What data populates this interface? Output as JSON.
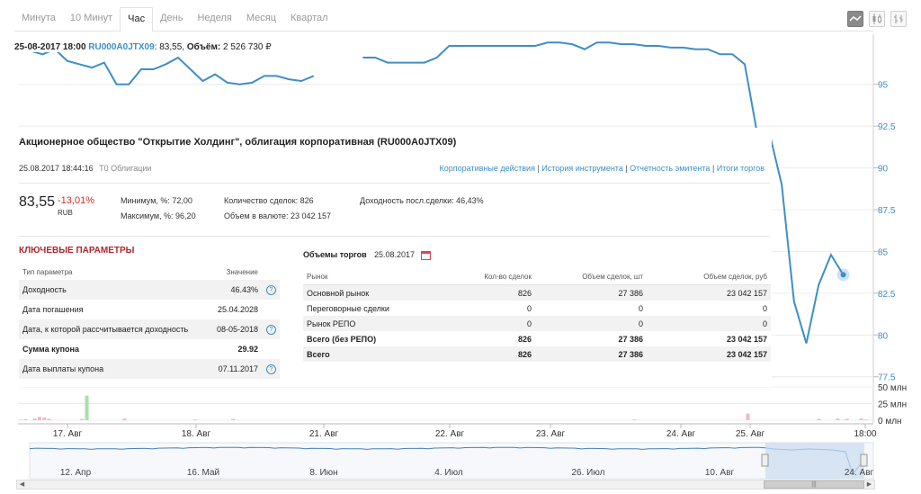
{
  "tabs": [
    "Минута",
    "10 Минут",
    "Час",
    "День",
    "Неделя",
    "Месяц",
    "Квартал"
  ],
  "active_tab": "Час",
  "chart_buttons": [
    "line-chart-icon",
    "candlestick-icon",
    "bar-chart-icon"
  ],
  "ohlc": {
    "datetime": "25-08-2017 18:00",
    "isin": "RU000A0JTX09",
    "price": ": 83,55,",
    "volume_label": "Объём:",
    "volume": "2 526 730 ₽"
  },
  "panel": {
    "title": "Акционерное общество \"Открытие Холдинг\", облигация корпоративная (RU000A0JTX09)",
    "timestamp": "25.08.2017 18:44:16",
    "board": "T0 Облигации",
    "links": [
      "Корпоративные действия",
      "История инструмента",
      "Отчетность эмитента",
      "Итоги торгов"
    ],
    "price": "83,55",
    "change": "-13,01%",
    "currency": "RUB",
    "min": "Минимум, %: 72,00",
    "max": "Максимум, %: 96,20",
    "deals": "Количество сделок: 826",
    "value": "Объем в валюте: 23 042 157",
    "yield_last": "Доходность посл.сделки: 46,43%",
    "key_params": {
      "title": "КЛЮЧЕВЫЕ ПАРАМЕТРЫ",
      "header": [
        "Тип параметра",
        "Значение"
      ],
      "rows": [
        {
          "name": "Доходность",
          "value": "46.43%",
          "help": "?"
        },
        {
          "name": "Дата погашения",
          "value": "25.04.2028",
          "help": ""
        },
        {
          "name": "Дата, к которой рассчитывается доходность",
          "value": "08-05-2018",
          "help": "?"
        },
        {
          "name": "Сумма купона",
          "value": "29.92",
          "help": ""
        },
        {
          "name": "Дата выплаты купона",
          "value": "07.11.2017",
          "help": "?"
        }
      ]
    },
    "volumes": {
      "title": "Объемы торгов",
      "date": "25.08.2017",
      "header": [
        "Рынок",
        "Кол-во сделок",
        "Объем сделок, шт",
        "Объем сделок, руб"
      ],
      "rows": [
        [
          "Основной рынок",
          "826",
          "27 386",
          "23 042 157"
        ],
        [
          "Переговорные сделки",
          "0",
          "0",
          "0"
        ],
        [
          "Рынок РЕПО",
          "0",
          "0",
          "0"
        ],
        [
          "Всего (без РЕПО)",
          "826",
          "27 386",
          "23 042 157"
        ],
        [
          "Всего",
          "826",
          "27 386",
          "23 042 157"
        ]
      ]
    }
  },
  "colors": {
    "line": "#3e8fc6",
    "down": "#d9292c",
    "vol_up": "#a6e2a6",
    "vol_down": "#f2b8c8",
    "nav_fill": "#c9dcf0"
  },
  "chart_data": [
    {
      "type": "line",
      "xlabel": "",
      "ylabel": "",
      "x": [
        "17. Авг 09:00",
        "17. Авг 10:00",
        "17. Авг 11:00",
        "17. Авг 12:00",
        "17. Авг 13:00",
        "17. Авг 14:00",
        "17. Авг 15:00",
        "17. Авг 16:00",
        "17. Авг 17:00",
        "17. Авг 18:00",
        "18. Авг 09:00",
        "18. Авг 10:00",
        "18. Авг 11:00",
        "18. Авг 12:00",
        "18. Авг 13:00",
        "18. Авг 14:00",
        "18. Авг 15:00",
        "18. Авг 16:00",
        "18. Авг 17:00",
        "18. Авг 18:00",
        "21. Авг 09:00",
        "21. Авг 10:00",
        "21. Авг 11:00",
        "21. Авг 12:00",
        "21. Авг 13:00",
        "21. Авг 14:00",
        "21. Авг 15:00",
        "21. Авг 16:00",
        "21. Авг 17:00",
        "21. Авг 18:00",
        "22. Авг 09:00",
        "22. Авг 10:00",
        "22. Авг 11:00",
        "22. Авг 12:00",
        "22. Авг 13:00",
        "22. Авг 14:00",
        "22. Авг 15:00",
        "22. Авг 16:00",
        "22. Авг 17:00",
        "22. Авг 18:00",
        "23. Авг 09:00",
        "23. Авг 10:00",
        "23. Авг 11:00",
        "23. Авг 12:00",
        "23. Авг 13:00",
        "23. Авг 14:00",
        "23. Авг 15:00",
        "23. Авг 16:00",
        "23. Авг 17:00",
        "23. Авг 18:00",
        "24. Авг 09:00",
        "24. Авг 10:00",
        "24. Авг 11:00",
        "24. Авг 12:00",
        "24. Авг 13:00",
        "24. Авг 14:00",
        "24. Авг 15:00",
        "24. Авг 16:00",
        "24. Авг 17:00",
        "24. Авг 18:00",
        "25. Авг 09:00",
        "25. Авг 10:00",
        "25. Авг 11:00",
        "25. Авг 12:00",
        "25. Авг 13:00",
        "25. Авг 14:00",
        "25. Авг 15:00",
        "25. Авг 16:00",
        "25. Авг 17:00",
        "25. Авг 18:00"
      ],
      "series": [
        {
          "values": [
            97.2,
            97.0,
            96.8,
            97.1,
            96.4,
            96.2,
            96.0,
            96.3,
            95.0,
            95.0,
            95.9,
            95.9,
            96.2,
            96.6,
            95.9,
            95.2,
            95.6,
            95.1,
            95.0,
            95.1,
            95.5,
            95.5,
            95.3,
            95.2,
            95.5,
            null,
            95.5,
            null,
            96.6,
            96.6,
            96.3,
            96.3,
            96.3,
            96.3,
            96.6,
            97.3,
            97.3,
            97.3,
            97.3,
            97.3,
            97.3,
            97.3,
            97.3,
            97.5,
            97.5,
            97.4,
            97.1,
            97.5,
            97.5,
            97.4,
            97.4,
            97.3,
            97.3,
            97.2,
            97.2,
            97.1,
            97.1,
            96.8,
            96.8,
            96.2,
            92.1,
            92.1,
            89.0,
            82.0,
            79.5,
            83.0,
            84.8,
            83.6,
            null,
            null
          ]
        }
      ],
      "y_ticks": [
        "77.5",
        "80",
        "82.5",
        "85",
        "87.5",
        "90",
        "92.5",
        "95"
      ],
      "ylim": [
        77.0,
        98.0
      ],
      "x_ticks": [
        "17. Авг",
        "18. Авг",
        "21. Авг",
        "22. Авг",
        "23. Авг",
        "24. Авг",
        "25. Авг",
        "18:00"
      ],
      "grid": "horizontal"
    },
    {
      "type": "bar",
      "y_ticks": [
        "50 млн",
        "25 млн",
        "0 млн"
      ],
      "ylim": [
        0,
        50
      ],
      "values": [
        0.8,
        1.5,
        0,
        2.5,
        5,
        4,
        2,
        0,
        0,
        0,
        0,
        0,
        0,
        2,
        37,
        0,
        0,
        0,
        0,
        0,
        0,
        0,
        2.5,
        0,
        0,
        0,
        0,
        0,
        0,
        0,
        0,
        0,
        0,
        0,
        0,
        0,
        0,
        1,
        0,
        0,
        0,
        0,
        0,
        0,
        0,
        2,
        0,
        0,
        0,
        0,
        0,
        0,
        0,
        0,
        0,
        0,
        0,
        0,
        0,
        0,
        0,
        0,
        0,
        0,
        0,
        0,
        0,
        0,
        0,
        0,
        0,
        0,
        0,
        0,
        0,
        0,
        0,
        0,
        0,
        0,
        0,
        0,
        0,
        0,
        0,
        0,
        0,
        0,
        0,
        0,
        0,
        0,
        0,
        0,
        0,
        0,
        0,
        0,
        0,
        0,
        0,
        0,
        0,
        0,
        0,
        0,
        0,
        0,
        0,
        0,
        0,
        0,
        0,
        0,
        0,
        0,
        0,
        0,
        0,
        0,
        0,
        0,
        0,
        0,
        0,
        0,
        0,
        0,
        0,
        0,
        1,
        0,
        0,
        0,
        0,
        0,
        0,
        0,
        0,
        0,
        0,
        0,
        0,
        0,
        0,
        0,
        0,
        0,
        0,
        0,
        0,
        0,
        0,
        0,
        10,
        0,
        0,
        0,
        0,
        0,
        0,
        0,
        0,
        0,
        0,
        0,
        0,
        0,
        0,
        2,
        0,
        0,
        0,
        2.5,
        0,
        2,
        0,
        0,
        2.5,
        1
      ],
      "up": [
        false,
        false,
        false,
        false,
        false,
        false,
        false,
        false,
        false,
        false,
        false,
        false,
        false,
        false,
        true,
        false,
        false,
        false,
        false,
        false,
        false,
        false,
        false,
        false,
        false,
        false,
        false,
        false,
        false,
        false,
        false,
        false,
        false,
        false,
        false,
        false,
        false,
        true,
        false,
        false,
        false,
        false,
        false,
        false,
        false,
        true,
        false,
        false,
        false,
        false,
        false,
        false,
        false,
        false,
        false,
        false,
        false,
        false,
        false,
        false,
        false,
        false,
        false,
        false,
        false,
        false,
        false,
        false,
        false,
        false,
        false,
        false,
        false,
        false,
        false,
        false,
        false,
        false,
        false,
        false,
        false,
        false,
        false,
        false,
        false,
        false,
        false,
        false,
        false,
        false,
        false,
        false,
        false,
        false,
        false,
        false,
        false,
        false,
        false,
        false,
        false,
        false,
        false,
        false,
        false,
        false,
        false,
        false,
        false,
        false,
        false,
        false,
        false,
        false,
        false,
        false,
        false,
        false,
        false,
        false,
        false,
        false,
        false,
        false,
        false,
        false,
        false,
        false,
        false,
        false,
        false,
        false,
        false,
        false,
        false,
        false,
        false,
        false,
        false,
        false,
        false,
        false,
        false,
        false,
        false,
        false,
        false,
        false,
        false,
        false,
        false,
        false,
        false,
        false,
        false,
        false,
        false,
        false,
        false,
        false,
        false,
        false,
        false,
        false,
        false,
        false,
        false,
        false,
        false,
        false,
        false,
        false,
        false,
        false,
        false,
        false,
        false,
        false,
        false
      ]
    },
    {
      "type": "area",
      "x_ticks": [
        "12. Апр",
        "16. Май",
        "8. Июн",
        "4. Июл",
        "26. Июл",
        "10. Авг",
        "24. Авг"
      ]
    }
  ]
}
